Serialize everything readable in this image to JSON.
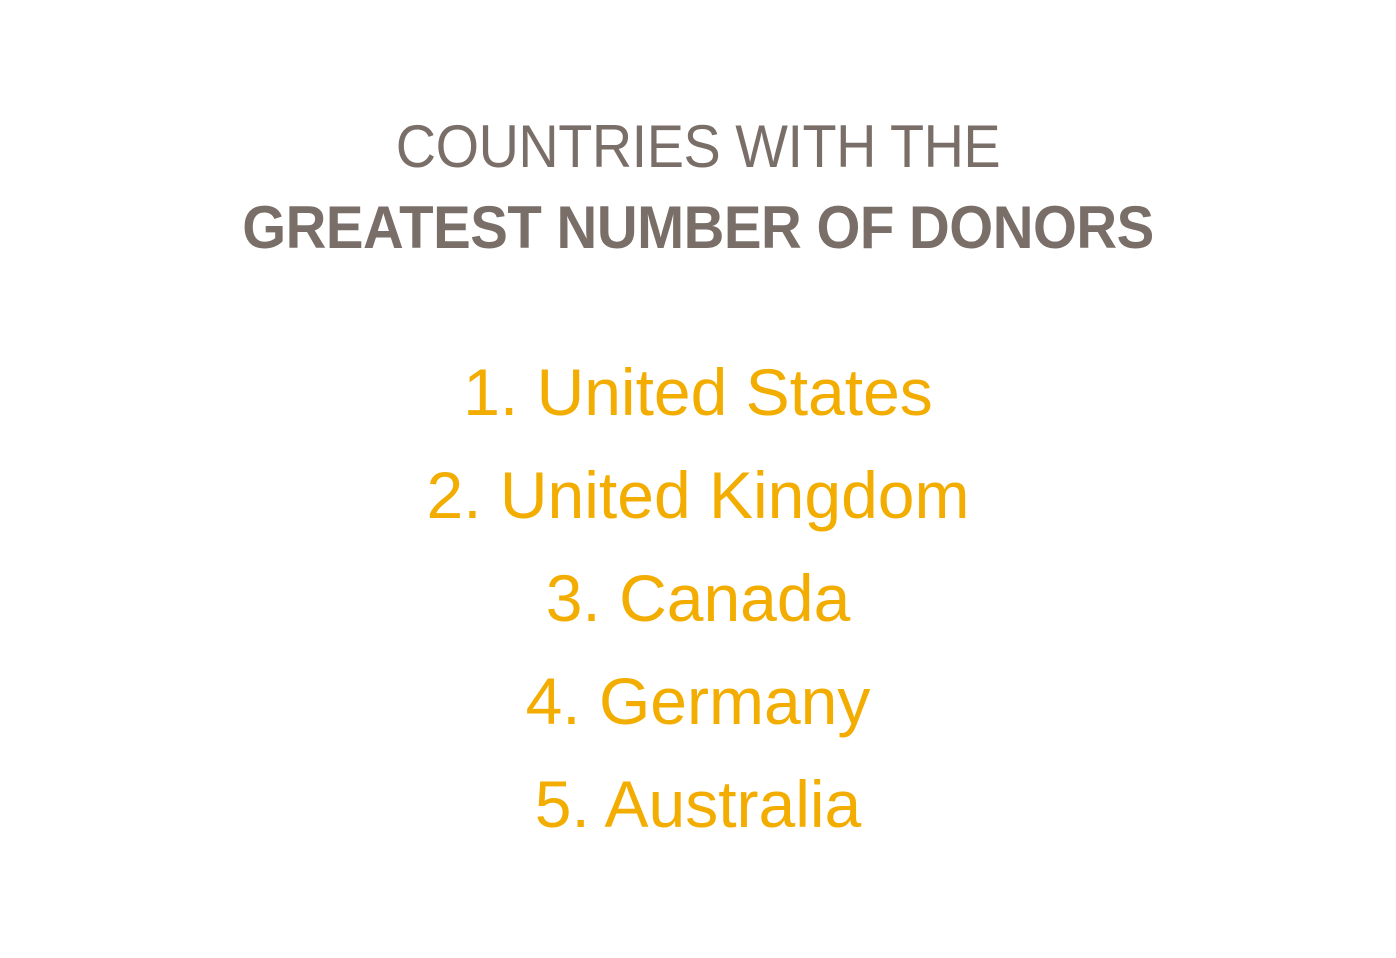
{
  "heading": {
    "line1": "COUNTRIES WITH THE",
    "line2": "GREATEST NUMBER OF DONORS"
  },
  "ranking": [
    "1. United States",
    "2. United Kingdom",
    "3. Canada",
    "4. Germany",
    "5. Australia"
  ],
  "colors": {
    "heading": "#7a6f68",
    "ranking": "#f2ad00",
    "background": "#ffffff"
  }
}
